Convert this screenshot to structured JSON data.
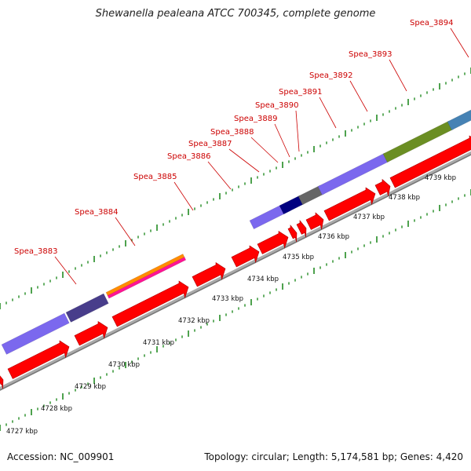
{
  "title": "Shewanella pealeana ATCC 700345, complete genome",
  "footer": {
    "accession": "Accession: NC_009901",
    "summary": "Topology: circular; Length: 5,174,581 bp; Genes: 4,420"
  },
  "colors": {
    "cds": "#ff0000",
    "gene_label": "#cc0000",
    "kbp_ticks": "#228b22",
    "backbone": "#999999",
    "features": [
      "#7b68ee",
      "#483d8b",
      "#ff8c00",
      "#ff1493",
      "#000080",
      "#666666",
      "#6b8e23",
      "#4682b4"
    ]
  },
  "gene_labels": [
    "Spea_3883",
    "Spea_3884",
    "Spea_3885",
    "Spea_3886",
    "Spea_3887",
    "Spea_3888",
    "Spea_3889",
    "Spea_3890",
    "Spea_3891",
    "Spea_3892",
    "Spea_3893",
    "Spea_3894"
  ],
  "kbp_labels": [
    "4727 kbp",
    "4728 kbp",
    "4729 kbp",
    "4730 kbp",
    "4731 kbp",
    "4732 kbp",
    "4733 kbp",
    "4734 kbp",
    "4735 kbp",
    "4736 kbp",
    "4737 kbp",
    "4738 kbp",
    "4739 kbp"
  ]
}
